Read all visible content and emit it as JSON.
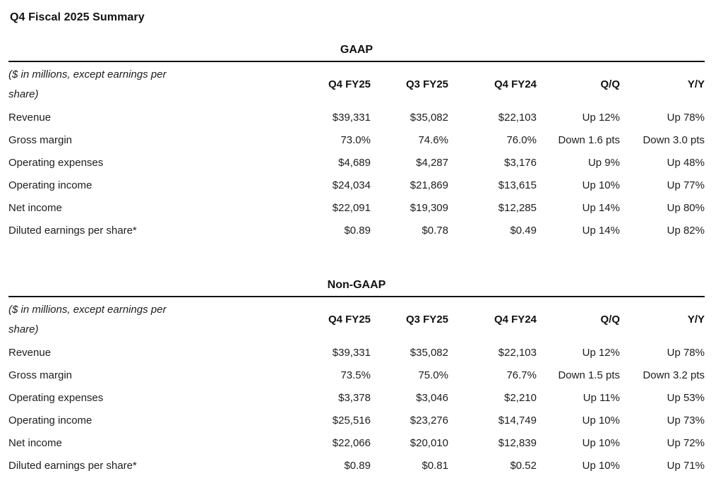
{
  "page": {
    "title": "Q4 Fiscal 2025 Summary"
  },
  "colors": {
    "text": "#1d1d1f",
    "heading": "#111111",
    "rule": "#111111",
    "background": "#ffffff"
  },
  "tables": [
    {
      "caption": "GAAP",
      "units_note": "($ in millions, except earnings per share)",
      "columns": [
        "Q4 FY25",
        "Q3 FY25",
        "Q4 FY24",
        "Q/Q",
        "Y/Y"
      ],
      "rows": [
        {
          "label": "Revenue",
          "values": [
            "$39,331",
            "$35,082",
            "$22,103",
            "Up 12%",
            "Up 78%"
          ]
        },
        {
          "label": "Gross margin",
          "values": [
            "73.0%",
            "74.6%",
            "76.0%",
            "Down 1.6 pts",
            "Down 3.0 pts"
          ]
        },
        {
          "label": "Operating expenses",
          "values": [
            "$4,689",
            "$4,287",
            "$3,176",
            "Up 9%",
            "Up 48%"
          ]
        },
        {
          "label": "Operating income",
          "values": [
            "$24,034",
            "$21,869",
            "$13,615",
            "Up 10%",
            "Up 77%"
          ]
        },
        {
          "label": "Net income",
          "values": [
            "$22,091",
            "$19,309",
            "$12,285",
            "Up 14%",
            "Up 80%"
          ]
        },
        {
          "label": "Diluted earnings per share*",
          "values": [
            "$0.89",
            "$0.78",
            "$0.49",
            "Up 14%",
            "Up 82%"
          ]
        }
      ]
    },
    {
      "caption": "Non-GAAP",
      "units_note": "($ in millions, except earnings per share)",
      "columns": [
        "Q4 FY25",
        "Q3 FY25",
        "Q4 FY24",
        "Q/Q",
        "Y/Y"
      ],
      "rows": [
        {
          "label": "Revenue",
          "values": [
            "$39,331",
            "$35,082",
            "$22,103",
            "Up 12%",
            "Up 78%"
          ]
        },
        {
          "label": "Gross margin",
          "values": [
            "73.5%",
            "75.0%",
            "76.7%",
            "Down 1.5 pts",
            "Down 3.2 pts"
          ]
        },
        {
          "label": "Operating expenses",
          "values": [
            "$3,378",
            "$3,046",
            "$2,210",
            "Up 11%",
            "Up 53%"
          ]
        },
        {
          "label": "Operating income",
          "values": [
            "$25,516",
            "$23,276",
            "$14,749",
            "Up 10%",
            "Up 73%"
          ]
        },
        {
          "label": "Net income",
          "values": [
            "$22,066",
            "$20,010",
            "$12,839",
            "Up 10%",
            "Up 72%"
          ]
        },
        {
          "label": "Diluted earnings per share*",
          "values": [
            "$0.89",
            "$0.81",
            "$0.52",
            "Up 10%",
            "Up 71%"
          ]
        }
      ]
    }
  ]
}
